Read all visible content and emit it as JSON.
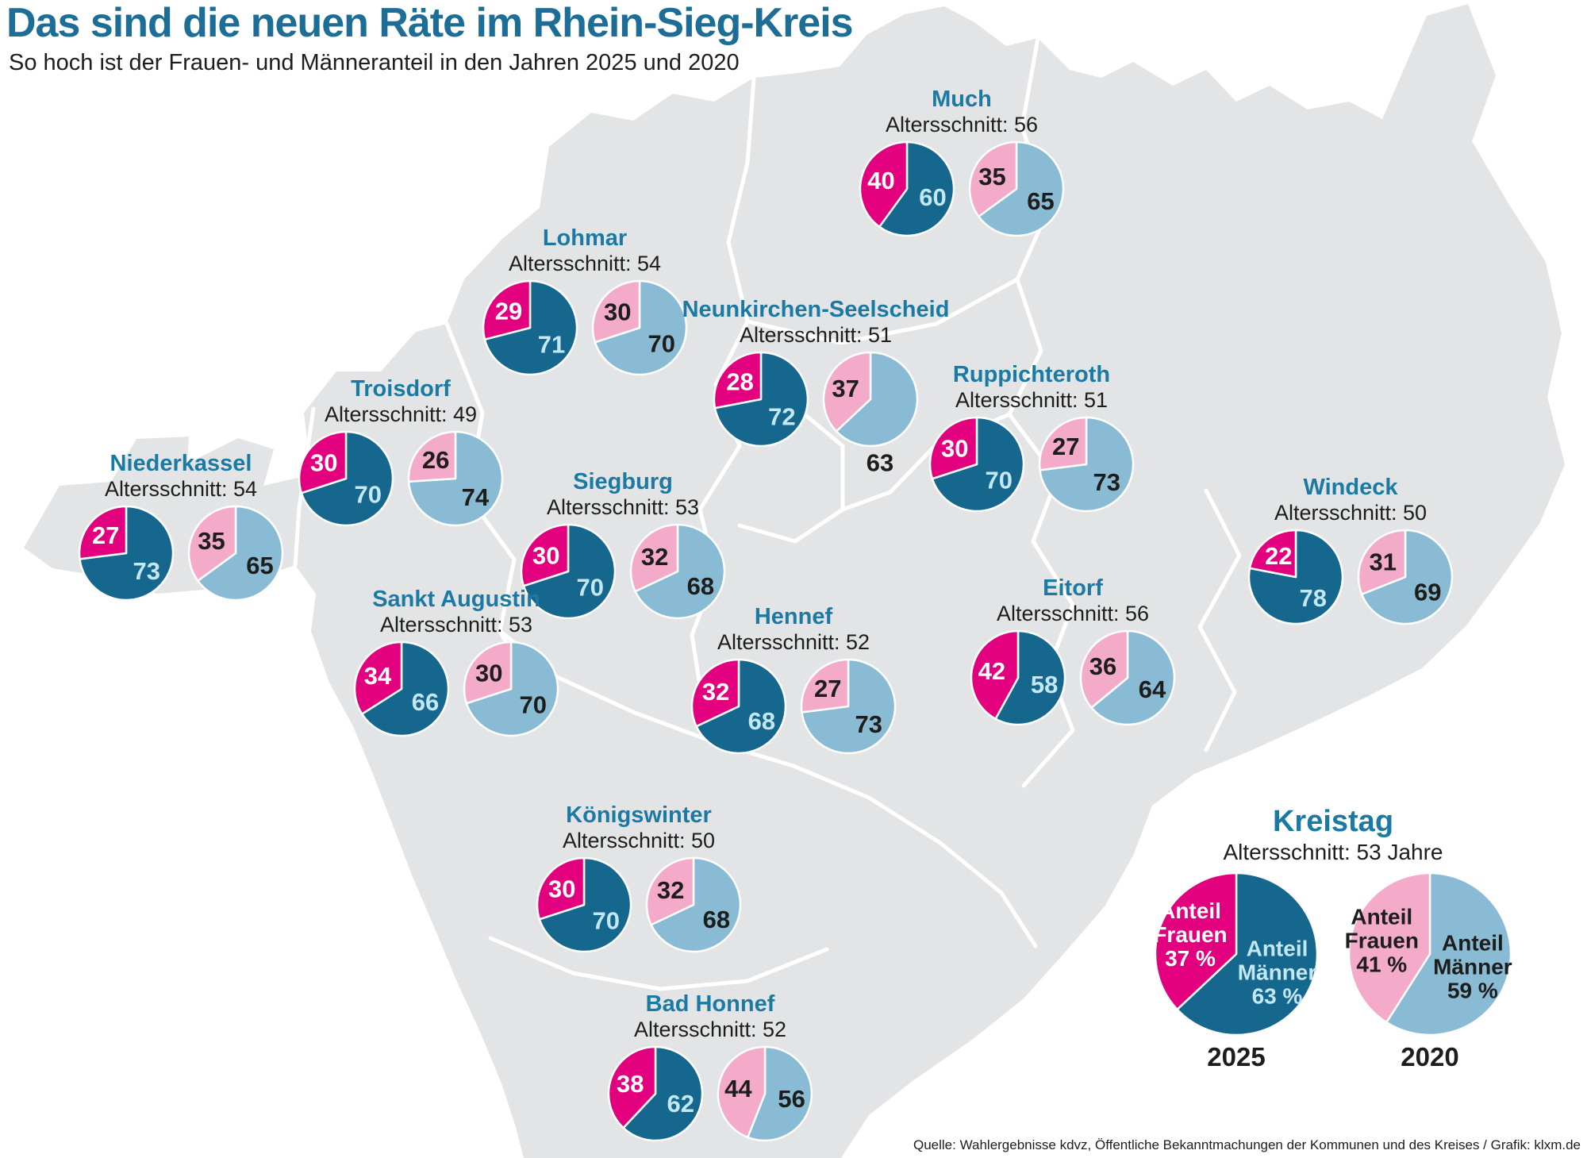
{
  "title": "Das sind die neuen Räte im Rhein-Sieg-Kreis",
  "subtitle": "So hoch ist der Frauen- und Männeranteil in den Jahren 2025 und 2020",
  "source": "Quelle: Wahlergebnisse kdvz, Öffentliche Bekanntmachungen der Kommunen und des Kreises / Grafik: klxm.de",
  "colors": {
    "women_2025": "#e2007e",
    "men_2025": "#16678e",
    "women_2020": "#f3abc9",
    "men_2020": "#8abbd5",
    "label_on_women_2025": "#ffffff",
    "label_on_men_2025": "#c3e8f3",
    "label_2020": "#1d1d1b",
    "map_fill": "#e3e4e5",
    "map_border": "#ffffff",
    "title_color": "#1d6e97",
    "municipality_name_color": "#1a7aa4",
    "text_dark": "#1d1d1b"
  },
  "chart_data": {
    "type": "pie",
    "unit": "percent",
    "slice_labels": [
      "Frauen",
      "Männer"
    ],
    "years": [
      "2025",
      "2020"
    ],
    "municipalities": [
      {
        "name": "Much",
        "age_text": "Altersschnitt: 56",
        "values_2025": [
          40,
          60
        ],
        "values_2020": [
          35,
          65
        ]
      },
      {
        "name": "Lohmar",
        "age_text": "Altersschnitt: 54",
        "values_2025": [
          29,
          71
        ],
        "values_2020": [
          30,
          70
        ]
      },
      {
        "name": "Neunkirchen-Seelscheid",
        "age_text": "Altersschnitt: 51",
        "values_2025": [
          28,
          72
        ],
        "values_2020": [
          37,
          63
        ]
      },
      {
        "name": "Ruppichteroth",
        "age_text": "Altersschnitt: 51",
        "values_2025": [
          30,
          70
        ],
        "values_2020": [
          27,
          73
        ]
      },
      {
        "name": "Troisdorf",
        "age_text": "Altersschnitt: 49",
        "values_2025": [
          30,
          70
        ],
        "values_2020": [
          26,
          74
        ]
      },
      {
        "name": "Niederkassel",
        "age_text": "Altersschnitt: 54",
        "values_2025": [
          27,
          73
        ],
        "values_2020": [
          35,
          65
        ]
      },
      {
        "name": "Siegburg",
        "age_text": "Altersschnitt: 53",
        "values_2025": [
          30,
          70
        ],
        "values_2020": [
          32,
          68
        ]
      },
      {
        "name": "Windeck",
        "age_text": "Altersschnitt: 50",
        "values_2025": [
          22,
          78
        ],
        "values_2020": [
          31,
          69
        ]
      },
      {
        "name": "Sankt Augustin",
        "age_text": "Altersschnitt: 53",
        "values_2025": [
          34,
          66
        ],
        "values_2020": [
          30,
          70
        ]
      },
      {
        "name": "Hennef",
        "age_text": "Altersschnitt: 52",
        "values_2025": [
          32,
          68
        ],
        "values_2020": [
          27,
          73
        ]
      },
      {
        "name": "Eitorf",
        "age_text": "Altersschnitt: 56",
        "values_2025": [
          42,
          58
        ],
        "values_2020": [
          36,
          64
        ]
      },
      {
        "name": "Königswinter",
        "age_text": "Altersschnitt: 50",
        "values_2025": [
          30,
          70
        ],
        "values_2020": [
          32,
          68
        ]
      },
      {
        "name": "Bad Honnef",
        "age_text": "Altersschnitt: 52",
        "values_2025": [
          38,
          62
        ],
        "values_2020": [
          44,
          56
        ]
      }
    ],
    "kreistag": {
      "name": "Kreistag",
      "age_text": "Altersschnitt: 53 Jahre",
      "women_label": "Anteil Frauen",
      "men_label": "Anteil Männer",
      "values_2025": [
        37,
        63
      ],
      "values_2020": [
        41,
        59
      ],
      "percent_suffix": " %",
      "year_2025": "2025",
      "year_2020": "2020"
    }
  }
}
